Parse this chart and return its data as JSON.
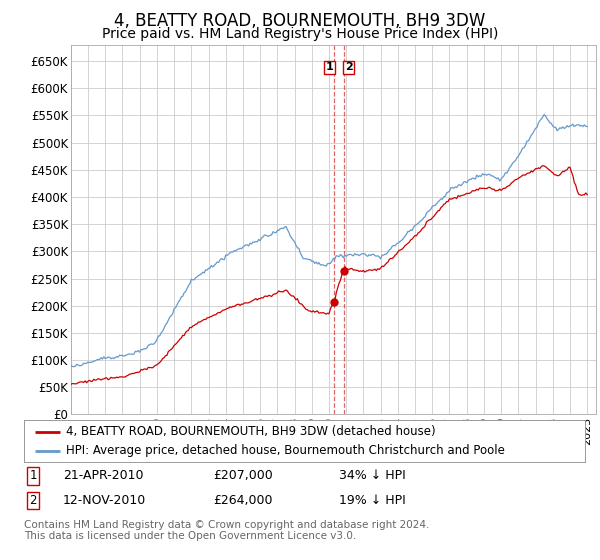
{
  "title": "4, BEATTY ROAD, BOURNEMOUTH, BH9 3DW",
  "subtitle": "Price paid vs. HM Land Registry's House Price Index (HPI)",
  "title_fontsize": 12,
  "subtitle_fontsize": 10,
  "ylabel_ticks": [
    "£0",
    "£50K",
    "£100K",
    "£150K",
    "£200K",
    "£250K",
    "£300K",
    "£350K",
    "£400K",
    "£450K",
    "£500K",
    "£550K",
    "£600K",
    "£650K"
  ],
  "ytick_values": [
    0,
    50000,
    100000,
    150000,
    200000,
    250000,
    300000,
    350000,
    400000,
    450000,
    500000,
    550000,
    600000,
    650000
  ],
  "ylim": [
    0,
    680000
  ],
  "xlim_start": 1995.0,
  "xlim_end": 2025.5,
  "sale1_date": "21-APR-2010",
  "sale1_price": 207000,
  "sale1_pct": "34%",
  "sale1_x": 2010.3,
  "sale2_date": "12-NOV-2010",
  "sale2_price": 264000,
  "sale2_pct": "19%",
  "sale2_x": 2010.87,
  "legend_line1": "4, BEATTY ROAD, BOURNEMOUTH, BH9 3DW (detached house)",
  "legend_line2": "HPI: Average price, detached house, Bournemouth Christchurch and Poole",
  "footer": "Contains HM Land Registry data © Crown copyright and database right 2024.\nThis data is licensed under the Open Government Licence v3.0.",
  "red_color": "#cc0000",
  "blue_color": "#6699cc",
  "background_color": "#ffffff",
  "grid_color": "#cccccc"
}
